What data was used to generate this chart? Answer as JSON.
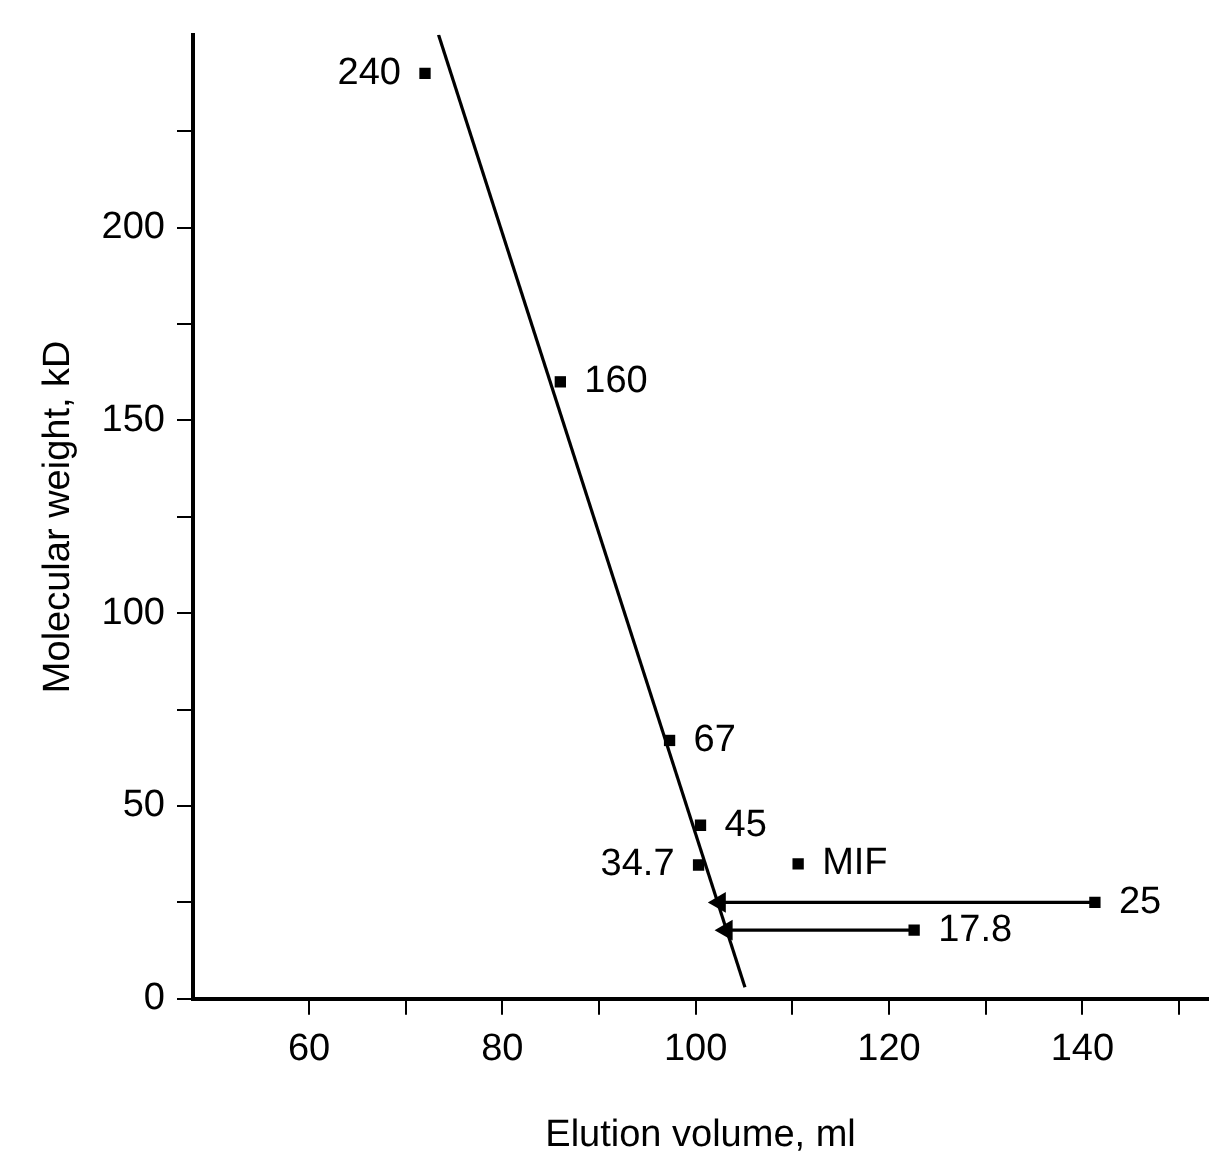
{
  "chart_data": {
    "type": "scatter",
    "xlabel": "Elution volume, ml",
    "ylabel": "Molecular weight, kD",
    "xlim": [
      48,
      153
    ],
    "xticks": [
      60,
      {
        "value": 70,
        "label": null
      },
      80,
      {
        "value": 90,
        "label": null
      },
      100,
      {
        "value": 110,
        "label": null
      },
      120,
      {
        "value": 130,
        "label": null
      },
      140,
      {
        "value": 150,
        "label": null
      }
    ],
    "ylim": [
      0,
      250
    ],
    "yticks": [
      0,
      {
        "value": 25,
        "label": null
      },
      50,
      {
        "value": 75,
        "label": null
      },
      100,
      {
        "value": 125,
        "label": null
      },
      150,
      {
        "value": 175,
        "label": null
      },
      200,
      {
        "value": 225,
        "label": null
      }
    ],
    "grid": false,
    "legend": false,
    "marker": "square",
    "series": [
      {
        "color": "#000000",
        "x": [
          72,
          86,
          97.3,
          100.5,
          100.3,
          110.6,
          141.3,
          122.6
        ],
        "values": [
          240,
          160,
          67,
          45,
          34.7,
          35,
          25,
          17.8
        ],
        "value_labels": [
          "240",
          "160",
          "67",
          "45",
          "34.7",
          "MIF",
          "25",
          "17.8"
        ]
      },
      {
        "type": "line",
        "color": "#000000",
        "marker": "none",
        "x": [
          73.4,
          105.1
        ],
        "values": [
          250,
          3
        ]
      },
      {
        "type": "line",
        "color": "#000000",
        "marker": "triangle",
        "x": [
          141.3,
          102.5
        ],
        "values": [
          25,
          25
        ]
      },
      {
        "type": "line",
        "color": "#000000",
        "marker": "triangle",
        "x": [
          122.6,
          103.2
        ],
        "values": [
          17.8,
          17.8
        ]
      }
    ]
  }
}
